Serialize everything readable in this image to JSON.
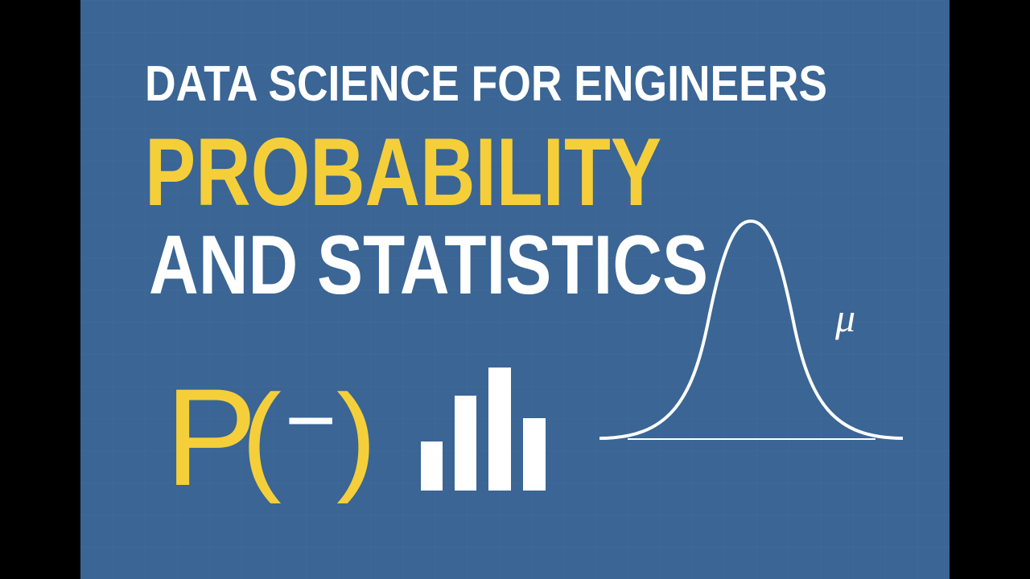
{
  "title": {
    "line1": "DATA SCIENCE FOR ENGINEERS",
    "line2": "PROBABILITY",
    "line3": "AND STATISTICS"
  },
  "formula": {
    "symbol": "P",
    "open": "(",
    "dash": "−",
    "close": ")"
  },
  "curve_label": "μ"
}
